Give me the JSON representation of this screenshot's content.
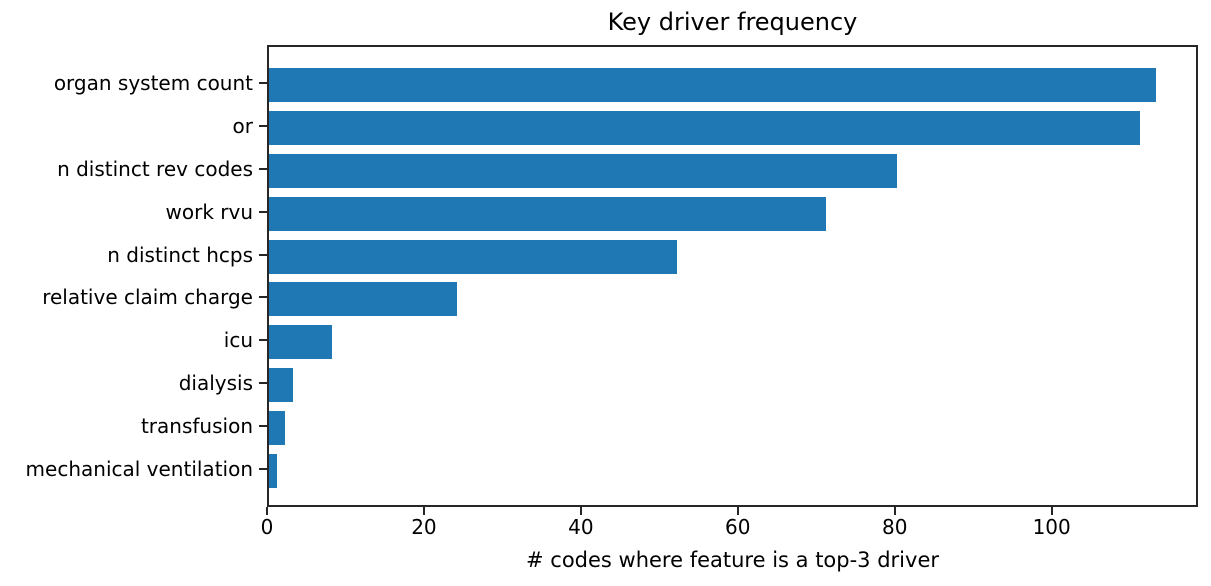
{
  "chart_data": {
    "type": "bar",
    "orientation": "horizontal",
    "title": "Key driver frequency",
    "xlabel": "# codes where feature is a top-3 driver",
    "ylabel": "",
    "categories": [
      "organ system count",
      "or",
      "n distinct rev codes",
      "work rvu",
      "n distinct hcps",
      "relative claim charge",
      "icu",
      "dialysis",
      "transfusion",
      "mechanical ventilation"
    ],
    "values": [
      113,
      111,
      80,
      71,
      52,
      24,
      8,
      3,
      2,
      1
    ],
    "xticks": [
      0,
      20,
      40,
      60,
      80,
      100
    ],
    "xlim": [
      0,
      118.65
    ],
    "grid": false,
    "legend": false,
    "bar_color": "#1f77b4",
    "axis_color": "#262626",
    "text_color": "#000000",
    "background_color": "#ffffff"
  }
}
